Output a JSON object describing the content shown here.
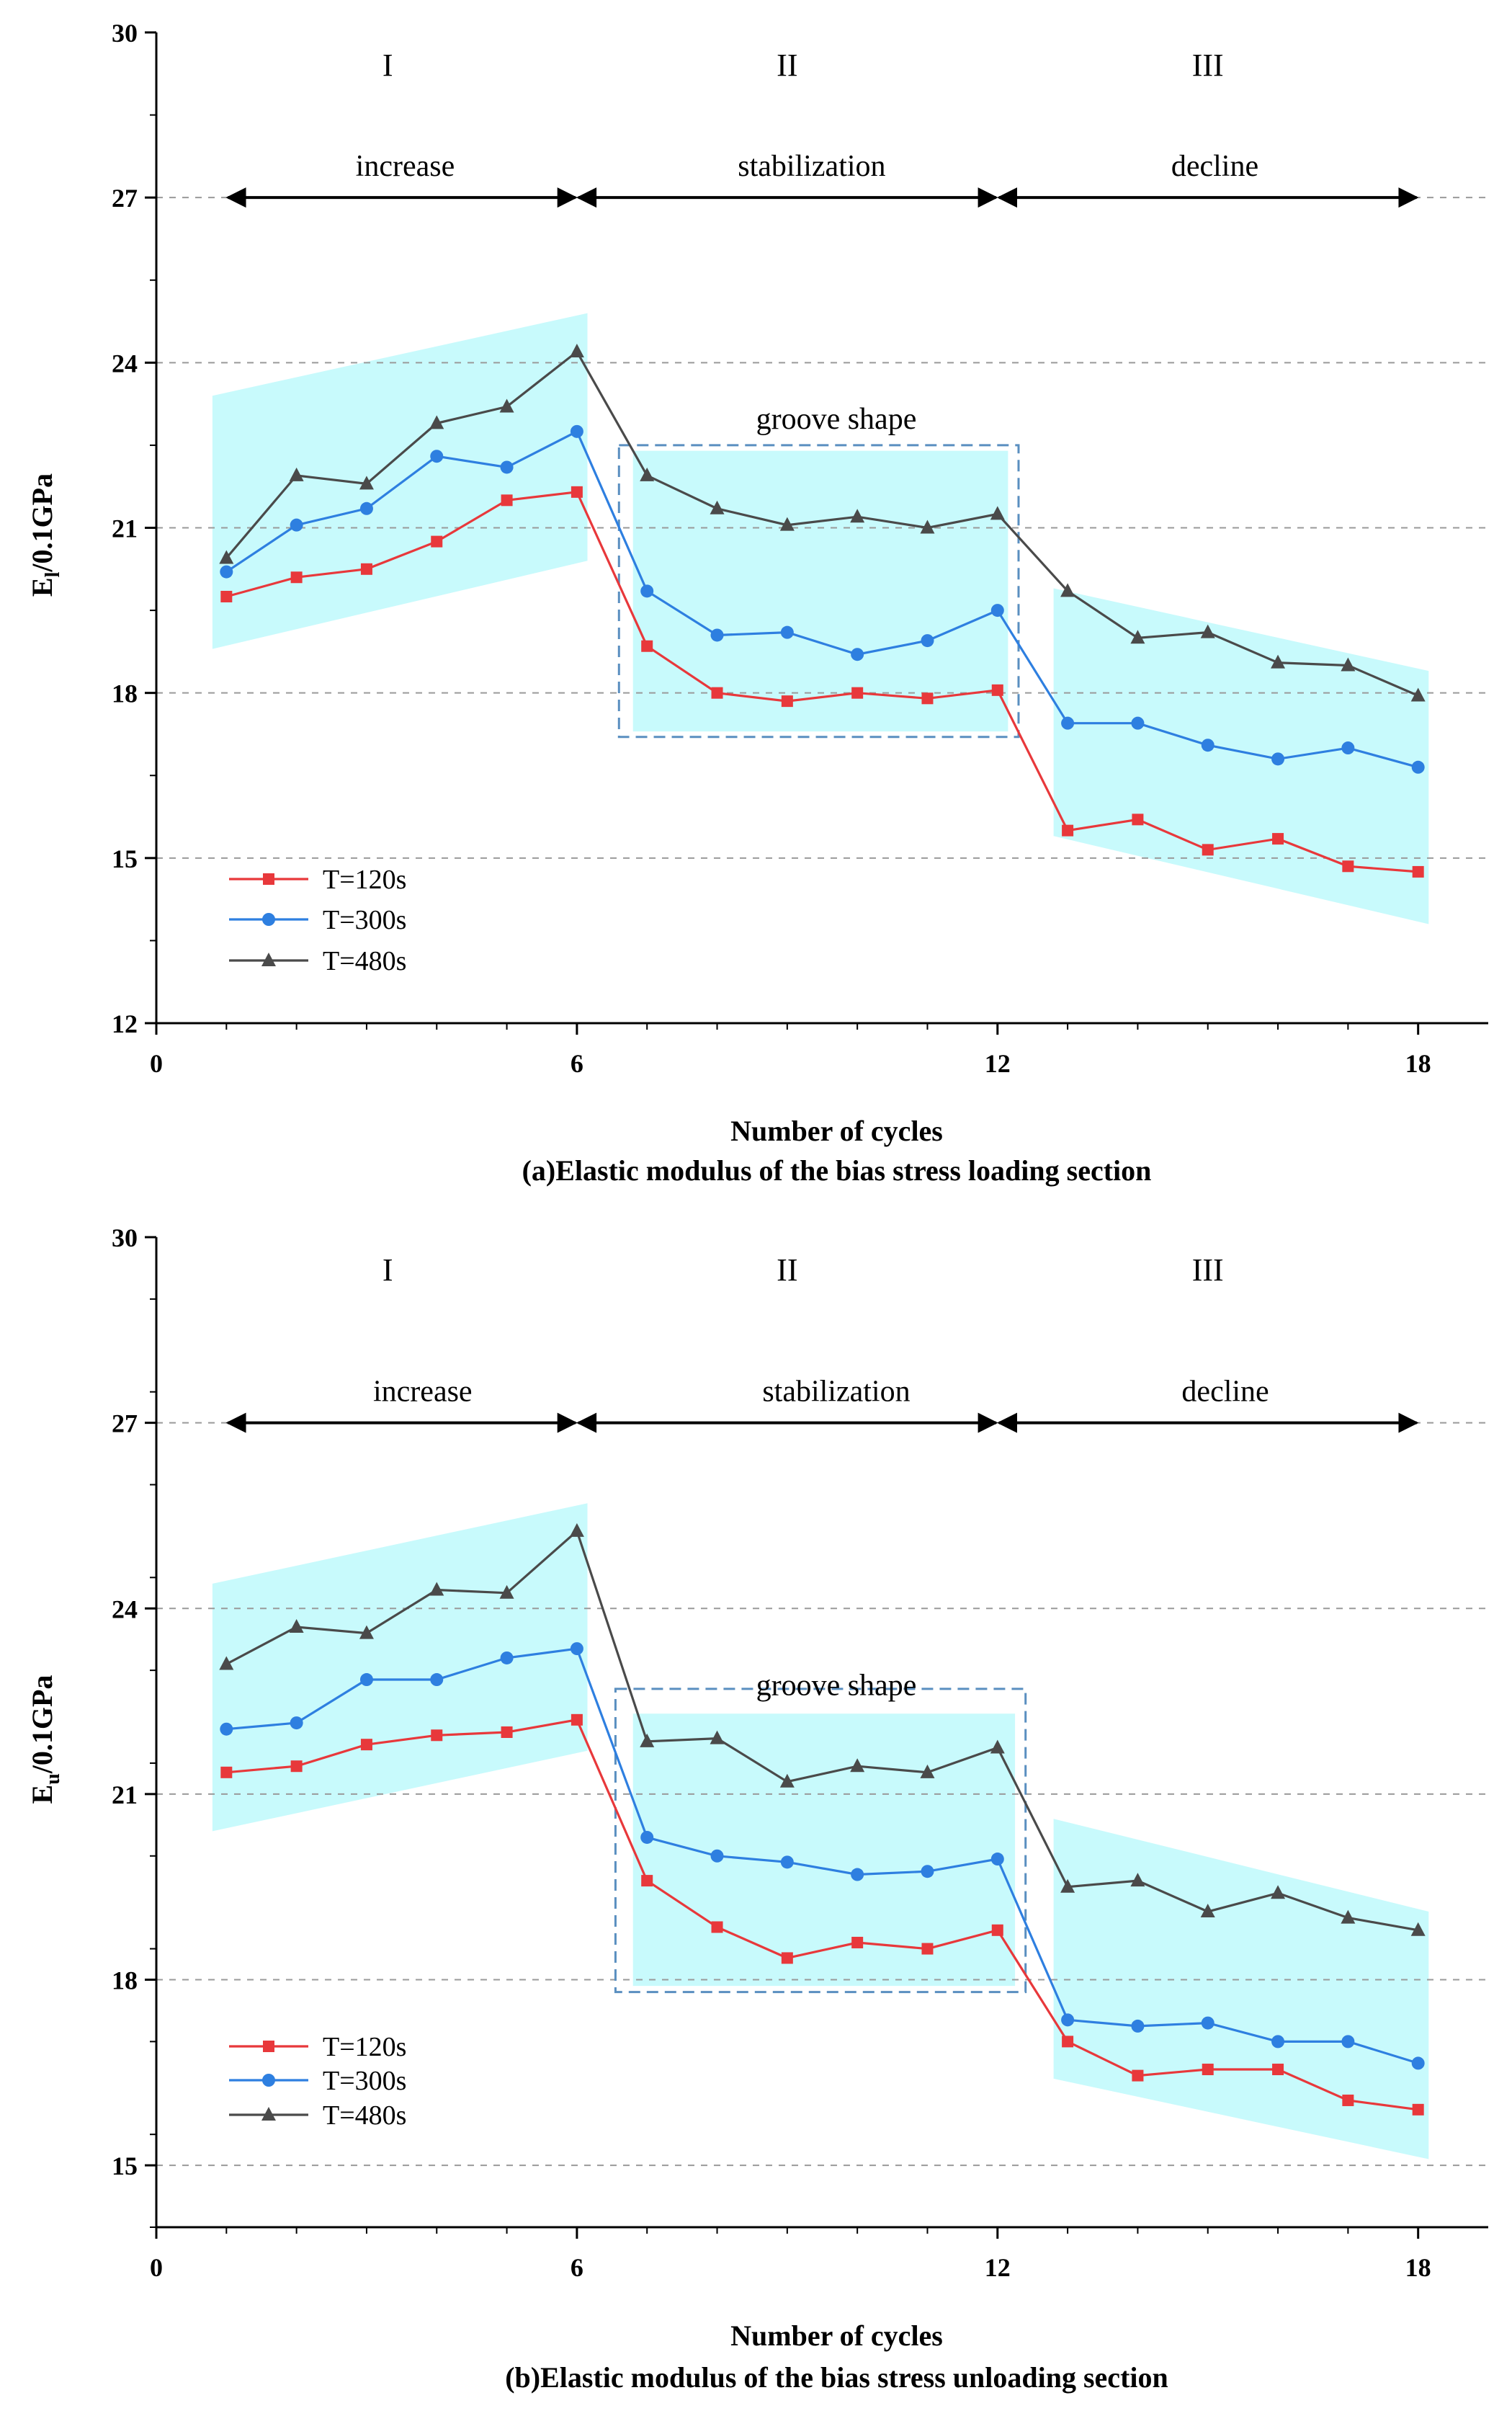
{
  "colors": {
    "T120": "#e8383b",
    "T300": "#2e7fe0",
    "T480": "#4a4a4a",
    "band": "#c8fafc",
    "grid": "#9a9a9a",
    "groove_box": "#5a8fc0",
    "arrow": "#000000"
  },
  "chart_data": [
    {
      "type": "line",
      "caption": "(a)Elastic modulus of the bias stress loading section",
      "xlabel": "Number of cycles",
      "ylabel_main": "E",
      "ylabel_sub": "l",
      "ylabel_rest": "/0.1GPa",
      "xlim": [
        0,
        19
      ],
      "ylim": [
        12,
        30
      ],
      "xticks": [
        "0",
        "6",
        "12",
        "18"
      ],
      "yticks": [
        "12",
        "15",
        "18",
        "21",
        "24",
        "27",
        "30"
      ],
      "gridlines_y": [
        15,
        18,
        21,
        24,
        27
      ],
      "phases": [
        {
          "roman": "I",
          "word": "increase",
          "x_from": 1,
          "x_to": 6,
          "roman_x": 3.3,
          "word_x": 3.55
        },
        {
          "roman": "II",
          "word": "stabilization",
          "x_from": 6,
          "x_to": 12,
          "roman_x": 9.0,
          "word_x": 9.35
        },
        {
          "roman": "III",
          "word": "decline",
          "x_from": 12,
          "x_to": 18,
          "roman_x": 15.0,
          "word_x": 15.1
        }
      ],
      "arrow_y": 27,
      "groove_label": "groove shape",
      "groove_label_at": [
        9.7,
        22.8
      ],
      "groove_box": {
        "x0": 6.6,
        "x1": 12.3,
        "y0": 17.2,
        "y1": 22.5
      },
      "bands": [
        [
          [
            0.8,
            23.4
          ],
          [
            6.15,
            24.9
          ],
          [
            6.15,
            20.4
          ],
          [
            0.8,
            18.8
          ]
        ],
        [
          [
            6.8,
            22.4
          ],
          [
            12.15,
            22.4
          ],
          [
            12.15,
            17.3
          ],
          [
            6.8,
            17.3
          ]
        ],
        [
          [
            12.8,
            19.9
          ],
          [
            18.15,
            18.4
          ],
          [
            18.15,
            13.8
          ],
          [
            12.8,
            15.4
          ]
        ]
      ],
      "x": [
        1,
        2,
        3,
        4,
        5,
        6,
        7,
        8,
        9,
        10,
        11,
        12,
        13,
        14,
        15,
        16,
        17,
        18
      ],
      "series": [
        {
          "name": "T=120s",
          "color_key": "T120",
          "marker": "square",
          "values": [
            19.75,
            20.1,
            20.25,
            20.75,
            21.5,
            21.65,
            18.85,
            18.0,
            17.85,
            18.0,
            17.9,
            18.05,
            15.5,
            15.7,
            15.15,
            15.35,
            14.85,
            14.75
          ]
        },
        {
          "name": "T=300s",
          "color_key": "T300",
          "marker": "circle",
          "values": [
            20.2,
            21.05,
            21.35,
            22.3,
            22.1,
            22.75,
            19.85,
            19.05,
            19.1,
            18.7,
            18.95,
            19.5,
            17.45,
            17.45,
            17.05,
            16.8,
            17.0,
            16.65
          ]
        },
        {
          "name": "T=480s",
          "color_key": "T480",
          "marker": "triangle",
          "values": [
            20.45,
            21.95,
            21.8,
            22.9,
            23.2,
            24.2,
            21.95,
            21.35,
            21.05,
            21.2,
            21.0,
            21.25,
            19.85,
            19.0,
            19.1,
            18.55,
            18.5,
            17.95
          ]
        }
      ],
      "legend_position": "bottom-left"
    },
    {
      "type": "line",
      "caption": "(b)Elastic modulus of the bias stress unloading section",
      "xlabel": "Number of cycles",
      "ylabel_main": "E",
      "ylabel_sub": "u",
      "ylabel_rest": "/0.1GPa",
      "xlim": [
        0,
        19
      ],
      "ylim": [
        14,
        30
      ],
      "xticks": [
        "0",
        "6",
        "12",
        "18"
      ],
      "yticks": [
        "15",
        "18",
        "21",
        "24",
        "27",
        "30"
      ],
      "gridlines_y": [
        15,
        18,
        21,
        24,
        27
      ],
      "phases": [
        {
          "roman": "I",
          "word": "increase",
          "x_from": 1,
          "x_to": 6,
          "roman_x": 3.3,
          "word_x": 3.8
        },
        {
          "roman": "II",
          "word": "stabilization",
          "x_from": 6,
          "x_to": 12,
          "roman_x": 9.0,
          "word_x": 9.7
        },
        {
          "roman": "III",
          "word": "decline",
          "x_from": 12,
          "x_to": 18,
          "roman_x": 15.0,
          "word_x": 15.25
        }
      ],
      "arrow_y": 27,
      "groove_label": "groove shape",
      "groove_label_at": [
        9.7,
        22.6
      ],
      "groove_box": {
        "x0": 6.55,
        "x1": 12.4,
        "y0": 17.8,
        "y1": 22.7
      },
      "bands": [
        [
          [
            0.8,
            24.4
          ],
          [
            6.15,
            25.7
          ],
          [
            6.15,
            21.7
          ],
          [
            0.8,
            20.4
          ]
        ],
        [
          [
            6.8,
            22.3
          ],
          [
            12.25,
            22.3
          ],
          [
            12.25,
            17.9
          ],
          [
            6.8,
            17.9
          ]
        ],
        [
          [
            12.8,
            20.6
          ],
          [
            18.15,
            19.1
          ],
          [
            18.15,
            15.1
          ],
          [
            12.8,
            16.4
          ]
        ]
      ],
      "x": [
        1,
        2,
        3,
        4,
        5,
        6,
        7,
        8,
        9,
        10,
        11,
        12,
        13,
        14,
        15,
        16,
        17,
        18
      ],
      "series": [
        {
          "name": "T=120s",
          "color_key": "T120",
          "marker": "square",
          "values": [
            21.35,
            21.45,
            21.8,
            21.95,
            22.0,
            22.2,
            19.6,
            18.85,
            18.35,
            18.6,
            18.5,
            18.8,
            17.0,
            16.45,
            16.55,
            16.55,
            16.05,
            15.9
          ]
        },
        {
          "name": "T=300s",
          "color_key": "T300",
          "marker": "circle",
          "values": [
            22.05,
            22.15,
            22.85,
            22.85,
            23.2,
            23.35,
            20.3,
            20.0,
            19.9,
            19.7,
            19.75,
            19.95,
            17.35,
            17.25,
            17.3,
            17.0,
            17.0,
            16.65
          ]
        },
        {
          "name": "T=480s",
          "color_key": "T480",
          "marker": "triangle",
          "values": [
            23.1,
            23.7,
            23.6,
            24.3,
            24.25,
            25.25,
            21.85,
            21.9,
            21.2,
            21.45,
            21.35,
            21.75,
            19.5,
            19.6,
            19.1,
            19.4,
            19.0,
            18.8
          ]
        }
      ],
      "legend_position": "bottom-left"
    }
  ]
}
